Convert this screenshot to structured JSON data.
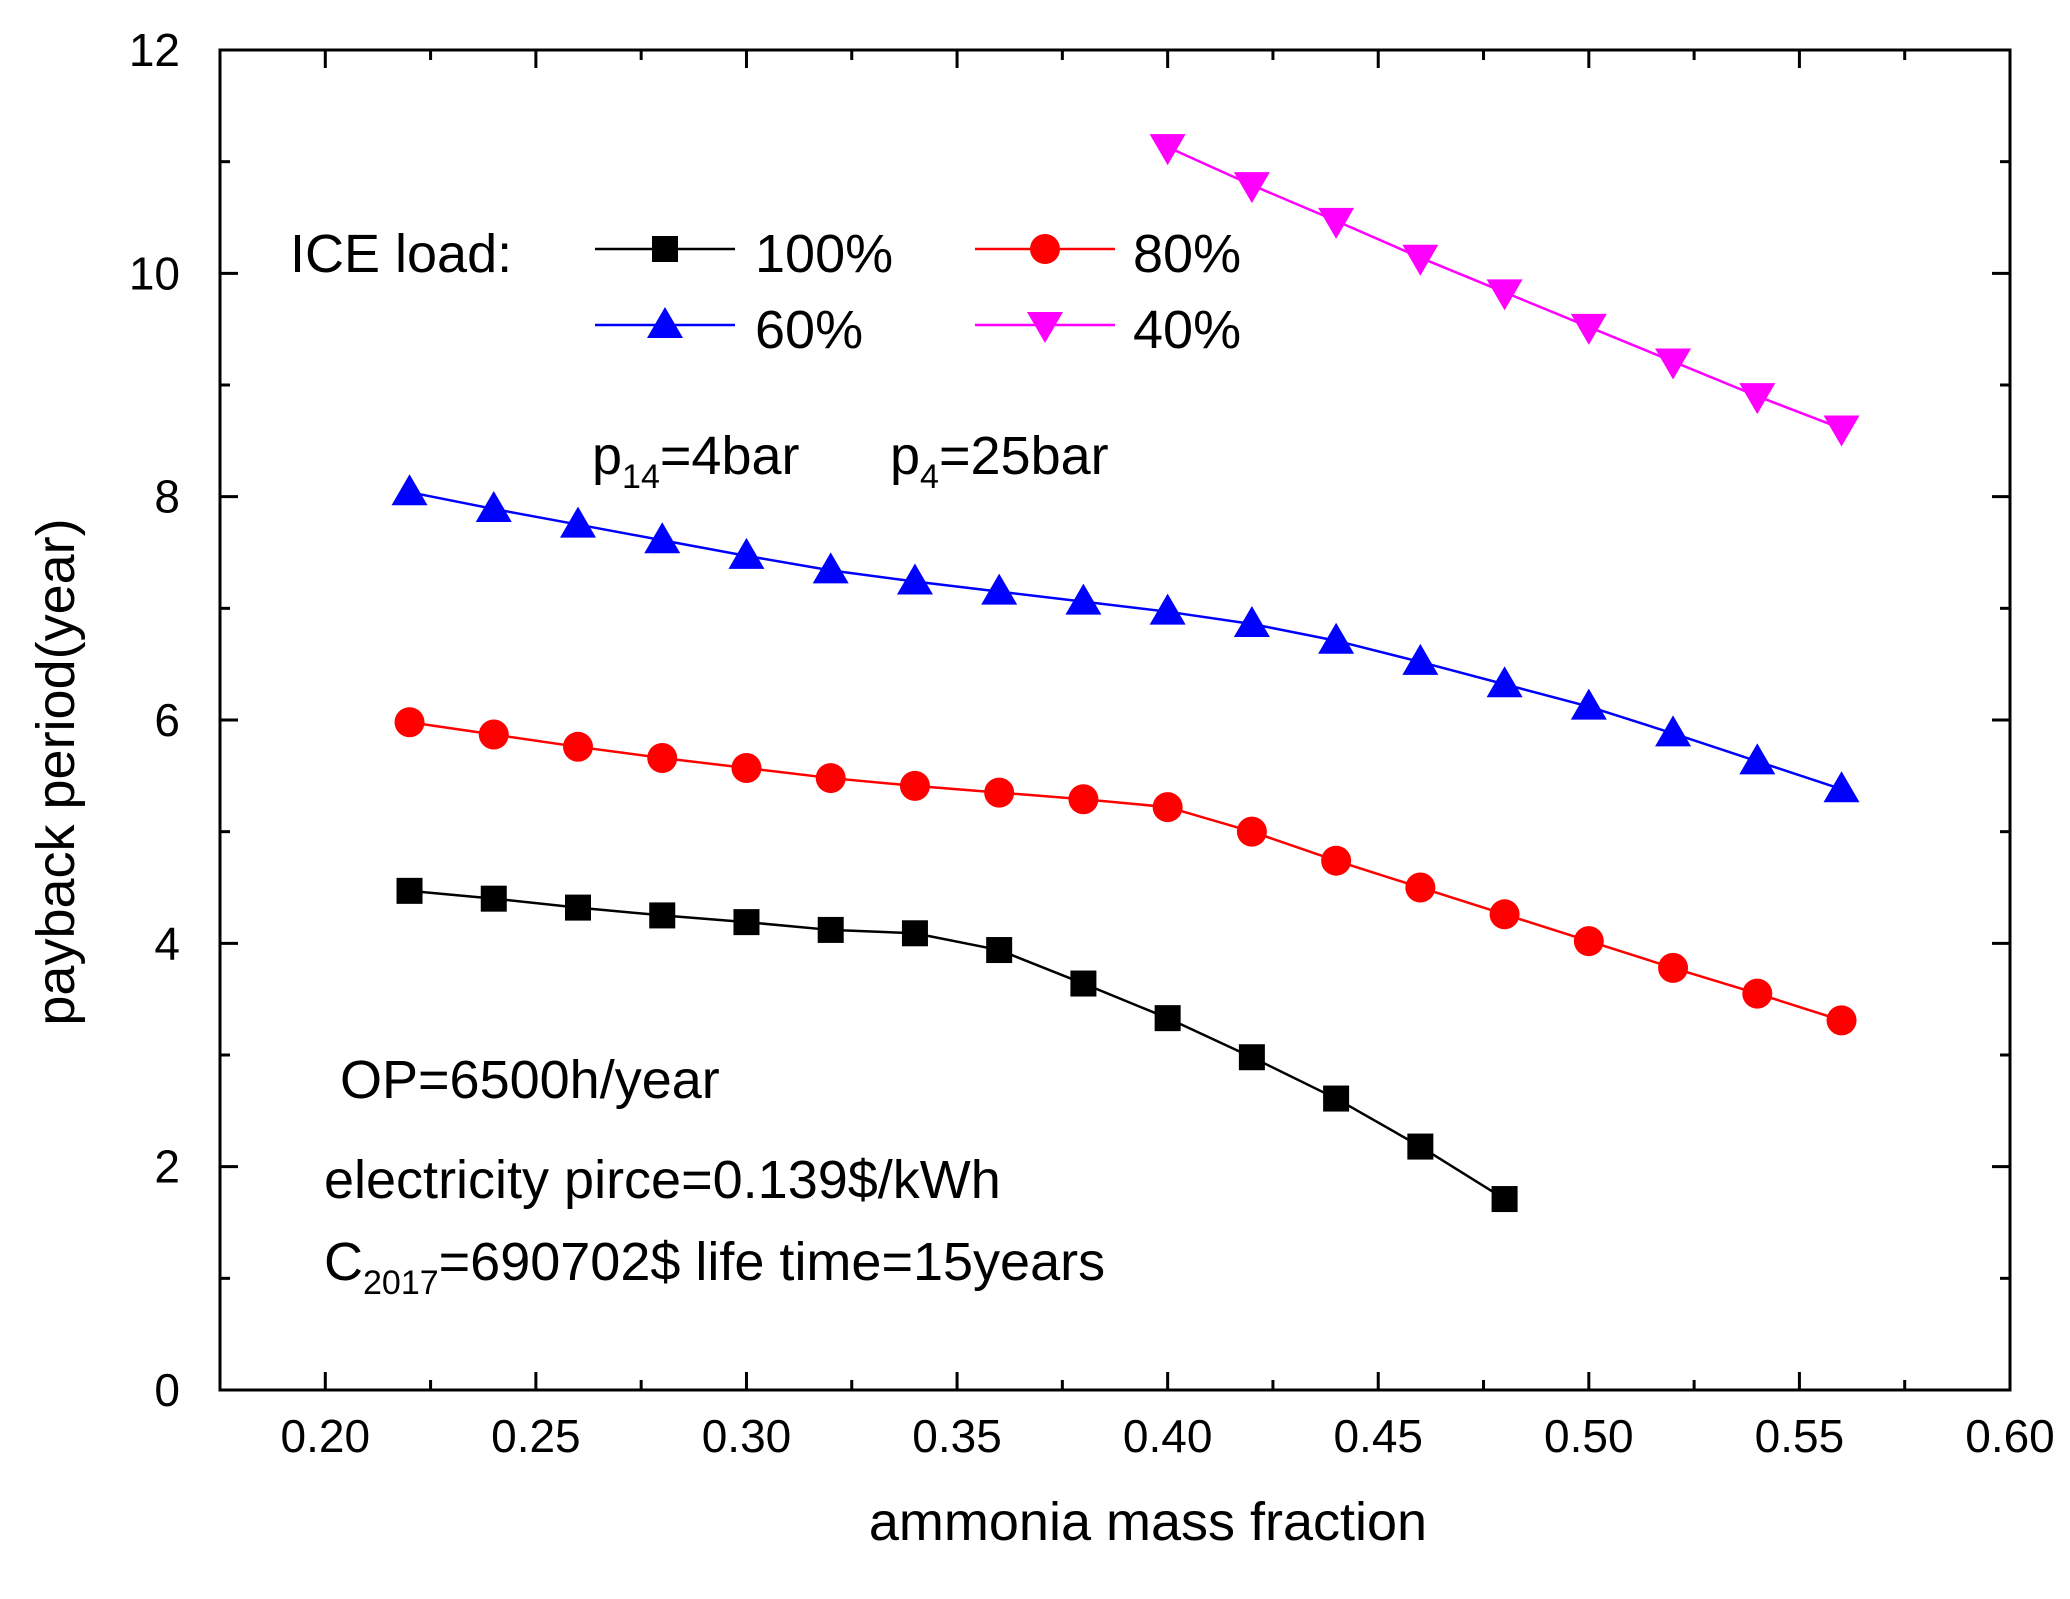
{
  "chart_data": {
    "type": "line",
    "xlabel": "ammonia mass fraction",
    "ylabel": "payback period(year)",
    "xlim": [
      0.175,
      0.6
    ],
    "ylim": [
      0,
      12
    ],
    "xticks": [
      0.2,
      0.25,
      0.3,
      0.35,
      0.4,
      0.45,
      0.5,
      0.55,
      0.6
    ],
    "xtick_labels": [
      "0.20",
      "0.25",
      "0.30",
      "0.35",
      "0.40",
      "0.45",
      "0.50",
      "0.55",
      "0.60"
    ],
    "yticks": [
      0,
      2,
      4,
      6,
      8,
      10,
      12
    ],
    "ytick_labels": [
      "0",
      "2",
      "4",
      "6",
      "8",
      "10",
      "12"
    ],
    "legend_title": "ICE load:",
    "legend_placement": "top-left",
    "series": [
      {
        "name": "100%",
        "marker": "square",
        "color": "#000000",
        "x": [
          0.22,
          0.24,
          0.26,
          0.28,
          0.3,
          0.32,
          0.34,
          0.36,
          0.38,
          0.4,
          0.42,
          0.44,
          0.46,
          0.48
        ],
        "values": [
          4.47,
          4.4,
          4.32,
          4.25,
          4.19,
          4.12,
          4.09,
          3.94,
          3.64,
          3.33,
          2.98,
          2.61,
          2.18,
          1.71
        ]
      },
      {
        "name": "80%",
        "marker": "circle",
        "color": "#ff0000",
        "x": [
          0.22,
          0.24,
          0.26,
          0.28,
          0.3,
          0.32,
          0.34,
          0.36,
          0.38,
          0.4,
          0.42,
          0.44,
          0.46,
          0.48,
          0.5,
          0.52,
          0.54,
          0.56
        ],
        "values": [
          5.98,
          5.87,
          5.76,
          5.66,
          5.57,
          5.48,
          5.41,
          5.35,
          5.29,
          5.22,
          5.0,
          4.74,
          4.5,
          4.26,
          4.02,
          3.78,
          3.55,
          3.31
        ]
      },
      {
        "name": "60%",
        "marker": "triangle-up",
        "color": "#0000ff",
        "x": [
          0.22,
          0.24,
          0.26,
          0.28,
          0.3,
          0.32,
          0.34,
          0.36,
          0.38,
          0.4,
          0.42,
          0.44,
          0.46,
          0.48,
          0.5,
          0.52,
          0.54,
          0.56
        ],
        "values": [
          8.04,
          7.89,
          7.75,
          7.61,
          7.47,
          7.34,
          7.24,
          7.15,
          7.06,
          6.97,
          6.86,
          6.71,
          6.52,
          6.32,
          6.12,
          5.88,
          5.63,
          5.38
        ]
      },
      {
        "name": "40%",
        "marker": "triangle-down",
        "color": "#ff00ff",
        "x": [
          0.4,
          0.42,
          0.44,
          0.46,
          0.48,
          0.5,
          0.52,
          0.54,
          0.56
        ],
        "values": [
          11.13,
          10.79,
          10.47,
          10.14,
          9.83,
          9.52,
          9.21,
          8.9,
          8.61
        ]
      }
    ],
    "annotations": {
      "pressure": {
        "p14_main": "p",
        "p14_sub": "14",
        "p14_rest": "=4bar",
        "p4_main": "p",
        "p4_sub": "4",
        "p4_rest": "=25bar"
      },
      "op": "OP=6500h/year",
      "electricity": "electricity pirce=0.139$/kWh",
      "cost": {
        "main": "C",
        "sub": "2017",
        "rest": "=690702$  life time=15years"
      }
    }
  }
}
